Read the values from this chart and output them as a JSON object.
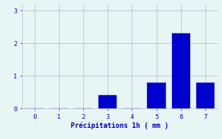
{
  "categories": [
    0,
    1,
    2,
    3,
    4,
    5,
    6,
    7
  ],
  "values": [
    0,
    0,
    0,
    0.4,
    0,
    0.8,
    2.3,
    0.8
  ],
  "bar_color": "#0000cc",
  "bar_edge_color": "#0000cc",
  "background_color": "#e8f5f5",
  "grid_color": "#aabbcc",
  "xlabel": "Précipitations 1h ( mm )",
  "xlabel_color": "#0000bb",
  "tick_color": "#0000bb",
  "ylim": [
    0,
    3.2
  ],
  "xlim": [
    -0.5,
    7.5
  ],
  "yticks": [
    0,
    1,
    2,
    3
  ],
  "xticks": [
    0,
    1,
    2,
    3,
    4,
    5,
    6,
    7
  ],
  "bar_width": 0.75
}
